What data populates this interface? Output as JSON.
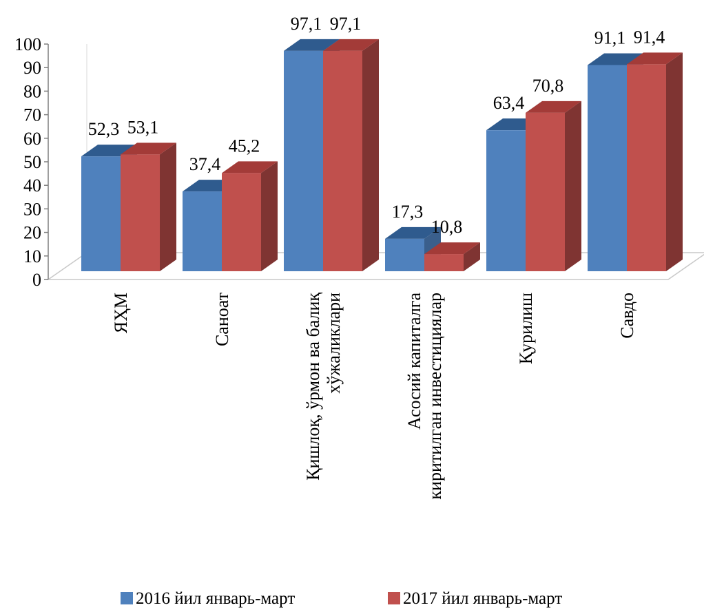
{
  "chart_data": {
    "type": "bar",
    "categories": [
      [
        "ЯҲМ"
      ],
      [
        "Саноат"
      ],
      [
        "Қишлоқ, ўрмон ва балиқ",
        "хўжаликлари"
      ],
      [
        "Асосий капиталга",
        "киритилган инвестициялар"
      ],
      [
        "Қурилиш"
      ],
      [
        "Савдо"
      ]
    ],
    "series": [
      {
        "name": "2016 йил январь-март",
        "values": [
          52.3,
          37.4,
          97.1,
          17.3,
          63.4,
          91.1
        ],
        "labels": [
          "52,3",
          "37,4",
          "97,1",
          "17,3",
          "63,4",
          "91,1"
        ]
      },
      {
        "name": "2017 йил январь-март",
        "values": [
          53.1,
          45.2,
          97.1,
          10.8,
          70.8,
          91.4
        ],
        "labels": [
          "53,1",
          "45,2",
          "97,1",
          "10,8",
          "70,8",
          "91,4"
        ]
      }
    ],
    "yticks": [
      "0",
      "10",
      "20",
      "30",
      "40",
      "50",
      "60",
      "70",
      "80",
      "90",
      "100"
    ],
    "ylim": [
      0,
      100
    ],
    "grid": false,
    "legend": "bottom",
    "colors": {
      "s0_front": "#4f81bd",
      "s0_side": "#3a5f8c",
      "s0_top": "#2f5b8e",
      "s1_front": "#c0504d",
      "s1_side": "#7f3432",
      "s1_top": "#a33b38"
    }
  }
}
